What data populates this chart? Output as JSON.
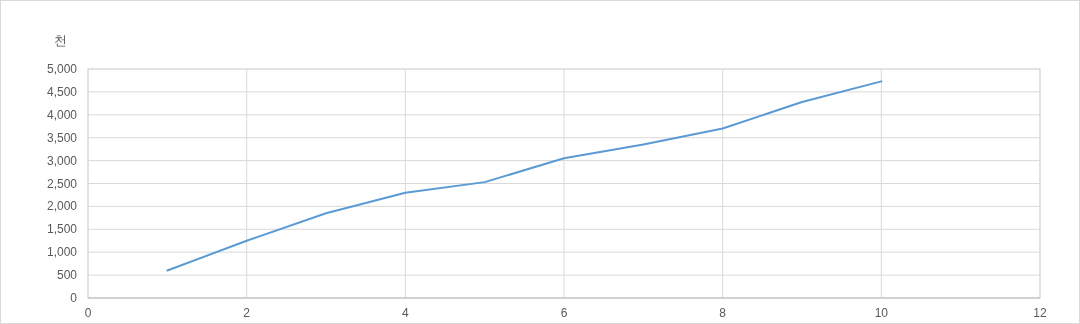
{
  "chart_data": {
    "type": "line",
    "ylabel": "천",
    "x": [
      1,
      2,
      3,
      4,
      5,
      6,
      7,
      8,
      9,
      10
    ],
    "series": [
      {
        "color": "#5b9bd5",
        "values": [
          600,
          1250,
          1850,
          2300,
          2530,
          3050,
          3350,
          3700,
          4280,
          4730
        ]
      }
    ],
    "xlim": [
      0,
      12
    ],
    "xticks": [
      0,
      2,
      4,
      6,
      8,
      10,
      12
    ],
    "ylim": [
      0,
      5000
    ],
    "yticks": [
      0,
      500,
      {
        "value": 1000,
        "label": "1,000"
      },
      {
        "value": 1500,
        "label": "1,500"
      },
      {
        "value": 2000,
        "label": "2,000"
      },
      {
        "value": 2500,
        "label": "2,500"
      },
      {
        "value": 3000,
        "label": "3,000"
      },
      {
        "value": 3500,
        "label": "3,500"
      },
      {
        "value": 4000,
        "label": "4,000"
      },
      {
        "value": 4500,
        "label": "4,500"
      },
      {
        "value": 5000,
        "label": "5,000"
      }
    ],
    "grid": true,
    "marker": "none",
    "line_style": "solid"
  }
}
